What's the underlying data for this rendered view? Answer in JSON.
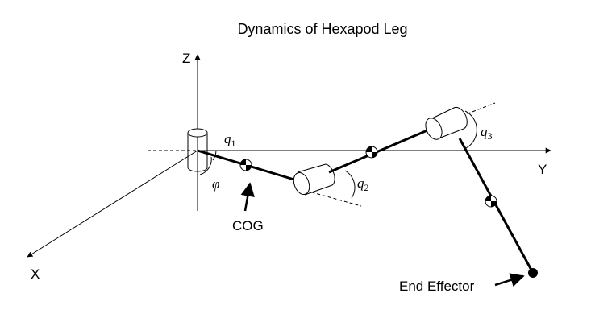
{
  "title": "Dynamics of Hexapod Leg",
  "axes": {
    "z_label": "Z",
    "y_label": "Y",
    "x_label": "X"
  },
  "angles": {
    "q1": {
      "symbol": "q",
      "index": "1"
    },
    "q2": {
      "symbol": "q",
      "index": "2"
    },
    "q3": {
      "symbol": "q",
      "index": "3"
    },
    "phi": "φ"
  },
  "callouts": {
    "cog": "COG",
    "end_effector": "End Effector"
  },
  "colors": {
    "ink": "#000000",
    "background": "#ffffff",
    "cog_fill": "#000000",
    "cog_alt": "#ffffff"
  }
}
